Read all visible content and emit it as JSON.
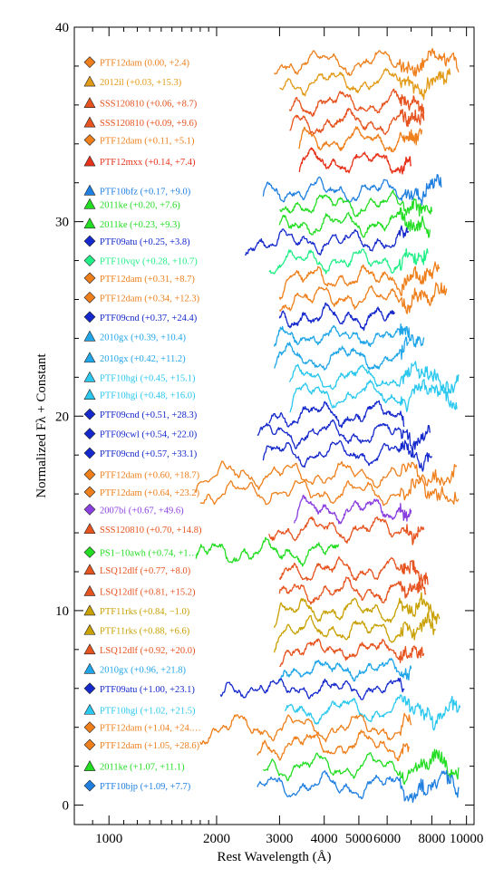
{
  "chart_data": {
    "type": "line",
    "xlabel": "Rest Wavelength (Å)",
    "ylabel": "Normalized Fλ + Constant",
    "xscale": "log",
    "xlim": [
      800,
      10500
    ],
    "ylim": [
      -1,
      40
    ],
    "x_ticks": [
      {
        "value": 1000,
        "label": "1000"
      },
      {
        "value": 2000,
        "label": "2000"
      },
      {
        "value": 3000,
        "label": "3000"
      },
      {
        "value": 4000,
        "label": "4000"
      },
      {
        "value": 5000,
        "label": "5000"
      },
      {
        "value": 6000,
        "label": "6000"
      },
      {
        "value": 8000,
        "label": "8000"
      },
      {
        "value": 10000,
        "label": "10000"
      }
    ],
    "y_ticks": [
      0,
      10,
      20,
      30,
      40
    ],
    "legend_placement": "left",
    "series": [
      {
        "name": "PTF12dam (0.00, +2.4)",
        "color": "#EE7F1B",
        "marker": "diamond",
        "offset": 38.2,
        "xmin": 2900,
        "xmax": 9500,
        "seed": 1
      },
      {
        "name": "2012il (+0.03, +15.3)",
        "color": "#E29A17",
        "marker": "triangle",
        "offset": 37.2,
        "xmin": 3000,
        "xmax": 9000,
        "seed": 2
      },
      {
        "name": "SSS120810 (+0.06, +8.7)",
        "color": "#E6531E",
        "marker": "triangle",
        "offset": 36.1,
        "xmin": 3200,
        "xmax": 7600,
        "seed": 3
      },
      {
        "name": "SSS120810 (+0.09, +9.6)",
        "color": "#E6531E",
        "marker": "triangle",
        "offset": 35.1,
        "xmin": 3200,
        "xmax": 7600,
        "seed": 4
      },
      {
        "name": "PTF12dam (+0.11, +5.1)",
        "color": "#EE7F1B",
        "marker": "diamond",
        "offset": 34.2,
        "xmin": 3400,
        "xmax": 7500,
        "seed": 5
      },
      {
        "name": "PTF12mxx (+0.14, +7.4)",
        "color": "#E8321A",
        "marker": "triangle",
        "offset": 33.1,
        "xmin": 3400,
        "xmax": 7000,
        "seed": 6
      },
      {
        "name": "PTF10bfz (+0.17, +9.0)",
        "color": "#1E7FE0",
        "marker": "triangle",
        "offset": 31.6,
        "xmin": 2700,
        "xmax": 8500,
        "seed": 7
      },
      {
        "name": "2011ke (+0.20, +7.6)",
        "color": "#22DD22",
        "marker": "triangle",
        "offset": 30.9,
        "xmin": 3000,
        "xmax": 8000,
        "seed": 8
      },
      {
        "name": "2011ke (+0.23, +9.3)",
        "color": "#22DD22",
        "marker": "triangle",
        "offset": 29.9,
        "xmin": 3000,
        "xmax": 7900,
        "seed": 9
      },
      {
        "name": "PTF09atu (+0.25, +3.8)",
        "color": "#1428CC",
        "marker": "diamond",
        "offset": 29.0,
        "xmin": 2400,
        "xmax": 6900,
        "seed": 10
      },
      {
        "name": "PTF10vqv (+0.28, +10.7)",
        "color": "#22EE88",
        "marker": "diamond",
        "offset": 28.0,
        "xmin": 2800,
        "xmax": 7800,
        "seed": 11
      },
      {
        "name": "PTF12dam (+0.31, +8.7)",
        "color": "#EE7F1B",
        "marker": "diamond",
        "offset": 27.1,
        "xmin": 3000,
        "xmax": 8400,
        "seed": 12
      },
      {
        "name": "PTF12dam (+0.34, +12.3)",
        "color": "#EE7F1B",
        "marker": "diamond",
        "offset": 26.1,
        "xmin": 3000,
        "xmax": 8800,
        "seed": 13
      },
      {
        "name": "PTF09cnd (+0.37, +24.4)",
        "color": "#1428CC",
        "marker": "diamond",
        "offset": 25.1,
        "xmin": 3000,
        "xmax": 6300,
        "seed": 14
      },
      {
        "name": "2010gx (+0.39, +10.4)",
        "color": "#20A6E8",
        "marker": "triangle",
        "offset": 24.1,
        "xmin": 2900,
        "xmax": 7600,
        "seed": 15
      },
      {
        "name": "2010gx (+0.42, +11.2)",
        "color": "#20A6E8",
        "marker": "triangle",
        "offset": 23.0,
        "xmin": 2900,
        "xmax": 6900,
        "seed": 16
      },
      {
        "name": "PTF10hgi (+0.45, +15.1)",
        "color": "#2AC8EE",
        "marker": "triangle",
        "offset": 22.0,
        "xmin": 3200,
        "xmax": 9500,
        "seed": 17
      },
      {
        "name": "PTF10hgi (+0.48, +16.0)",
        "color": "#2AC8EE",
        "marker": "triangle",
        "offset": 21.1,
        "xmin": 3200,
        "xmax": 9400,
        "seed": 18
      },
      {
        "name": "PTF09cnd (+0.51, +28.3)",
        "color": "#1428CC",
        "marker": "diamond",
        "offset": 20.1,
        "xmin": 2800,
        "xmax": 6700,
        "seed": 19
      },
      {
        "name": "PTF09cwl (+0.54, +22.0)",
        "color": "#1428CC",
        "marker": "diamond",
        "offset": 19.1,
        "xmin": 2600,
        "xmax": 7900,
        "seed": 20
      },
      {
        "name": "PTF09cnd (+0.57, +33.1)",
        "color": "#1428CC",
        "marker": "diamond",
        "offset": 18.1,
        "xmin": 2700,
        "xmax": 8000,
        "seed": 21
      },
      {
        "name": "PTF12dam (+0.60, +18.7)",
        "color": "#EE7F1B",
        "marker": "diamond",
        "offset": 17.0,
        "xmin": 1750,
        "xmax": 9400,
        "seed": 22
      },
      {
        "name": "PTF12dam (+0.64, +23.2)",
        "color": "#EE7F1B",
        "marker": "diamond",
        "offset": 16.1,
        "xmin": 1800,
        "xmax": 9500,
        "seed": 23
      },
      {
        "name": "2007bi (+0.67, +49.6)",
        "color": "#8A3FE0",
        "marker": "diamond",
        "offset": 15.2,
        "xmin": 3300,
        "xmax": 7000,
        "seed": 24
      },
      {
        "name": "SSS120810 (+0.70, +14.8)",
        "color": "#E6531E",
        "marker": "triangle",
        "offset": 14.2,
        "xmin": 2800,
        "xmax": 7600,
        "seed": 25
      },
      {
        "name": "PS1−10awh (+0.74, +1…",
        "color": "#22DD22",
        "marker": "diamond",
        "offset": 13.0,
        "xmin": 1750,
        "xmax": 4400,
        "seed": 26
      },
      {
        "name": "LSQ12dlf (+0.77, +8.0)",
        "color": "#E6531E",
        "marker": "triangle",
        "offset": 12.1,
        "xmin": 3000,
        "xmax": 7800,
        "seed": 27
      },
      {
        "name": "LSQ12dlf (+0.81, +15.2)",
        "color": "#E6531E",
        "marker": "triangle",
        "offset": 11.0,
        "xmin": 3000,
        "xmax": 7700,
        "seed": 28
      },
      {
        "name": "PTF11rks (+0.84, −1.0)",
        "color": "#C8A000",
        "marker": "triangle",
        "offset": 10.0,
        "xmin": 2900,
        "xmax": 8400,
        "seed": 29
      },
      {
        "name": "PTF11rks (+0.88, +6.6)",
        "color": "#C8A000",
        "marker": "triangle",
        "offset": 9.0,
        "xmin": 2900,
        "xmax": 8200,
        "seed": 30
      },
      {
        "name": "LSQ12dlf (+0.92, +20.0)",
        "color": "#E6531E",
        "marker": "triangle",
        "offset": 8.0,
        "xmin": 3000,
        "xmax": 7600,
        "seed": 31
      },
      {
        "name": "2010gx (+0.96, +21.8)",
        "color": "#20A6E8",
        "marker": "triangle",
        "offset": 7.0,
        "xmin": 3000,
        "xmax": 7000,
        "seed": 32
      },
      {
        "name": "PTF09atu (+1.00, +23.1)",
        "color": "#1428CC",
        "marker": "diamond",
        "offset": 6.0,
        "xmin": 2050,
        "xmax": 6700,
        "seed": 33
      },
      {
        "name": "PTF10hgi (+1.02, +21.5)",
        "color": "#2AC8EE",
        "marker": "triangle",
        "offset": 4.9,
        "xmin": 3100,
        "xmax": 9600,
        "seed": 34
      },
      {
        "name": "PTF12dam (+1.04, +24.…",
        "color": "#EE7F1B",
        "marker": "diamond",
        "offset": 4.0,
        "xmin": 1800,
        "xmax": 7000,
        "seed": 35
      },
      {
        "name": "PTF12dam (+1.05, +28.6)",
        "color": "#EE7F1B",
        "marker": "diamond",
        "offset": 3.1,
        "xmin": 2600,
        "xmax": 6900,
        "seed": 36
      },
      {
        "name": "2011ke (+1.07, +11.1)",
        "color": "#22DD22",
        "marker": "triangle",
        "offset": 2.0,
        "xmin": 2700,
        "xmax": 9500,
        "seed": 37
      },
      {
        "name": "PTF10bjp (+1.09, +7.7)",
        "color": "#1E7FE0",
        "marker": "diamond",
        "offset": 1.0,
        "xmin": 2600,
        "xmax": 9500,
        "seed": 38
      }
    ]
  }
}
